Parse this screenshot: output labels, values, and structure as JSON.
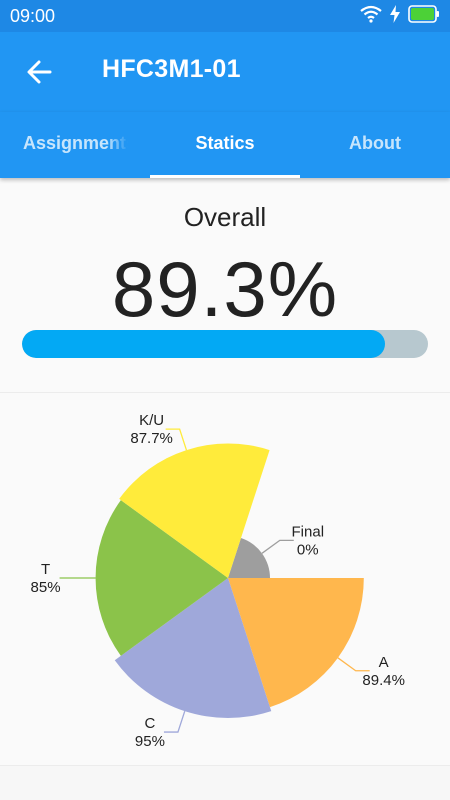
{
  "status_bar": {
    "time": "09:00",
    "icons": [
      "wifi-icon",
      "charging-bolt-icon",
      "battery-icon"
    ],
    "battery_color": "#4cd137"
  },
  "app_bar": {
    "title": "HFC3M1-01",
    "back_icon": "back-arrow-icon",
    "color": "#2196f3"
  },
  "tabs": [
    {
      "label": "Assignments",
      "active": false
    },
    {
      "label": "Statics",
      "active": true
    },
    {
      "label": "About",
      "active": false
    }
  ],
  "overall": {
    "label": "Overall",
    "value": "89.3%",
    "progress": 0.893,
    "fill_color": "#03a9f4",
    "track_color": "#b7c8cf"
  },
  "chart_data": {
    "type": "pie",
    "subtype": "polar-area",
    "slices": [
      {
        "label": "Final",
        "value_text": "0%",
        "value": 0,
        "color": "#9e9e9e"
      },
      {
        "label": "A",
        "value_text": "89.4%",
        "value": 89.4,
        "color": "#ffb74d"
      },
      {
        "label": "C",
        "value_text": "95%",
        "value": 95,
        "color": "#9fa8da"
      },
      {
        "label": "T",
        "value_text": "85%",
        "value": 85,
        "color": "#8bc34a"
      },
      {
        "label": "K/U",
        "value_text": "87.7%",
        "value": 87.7,
        "color": "#ffeb3b"
      }
    ]
  }
}
